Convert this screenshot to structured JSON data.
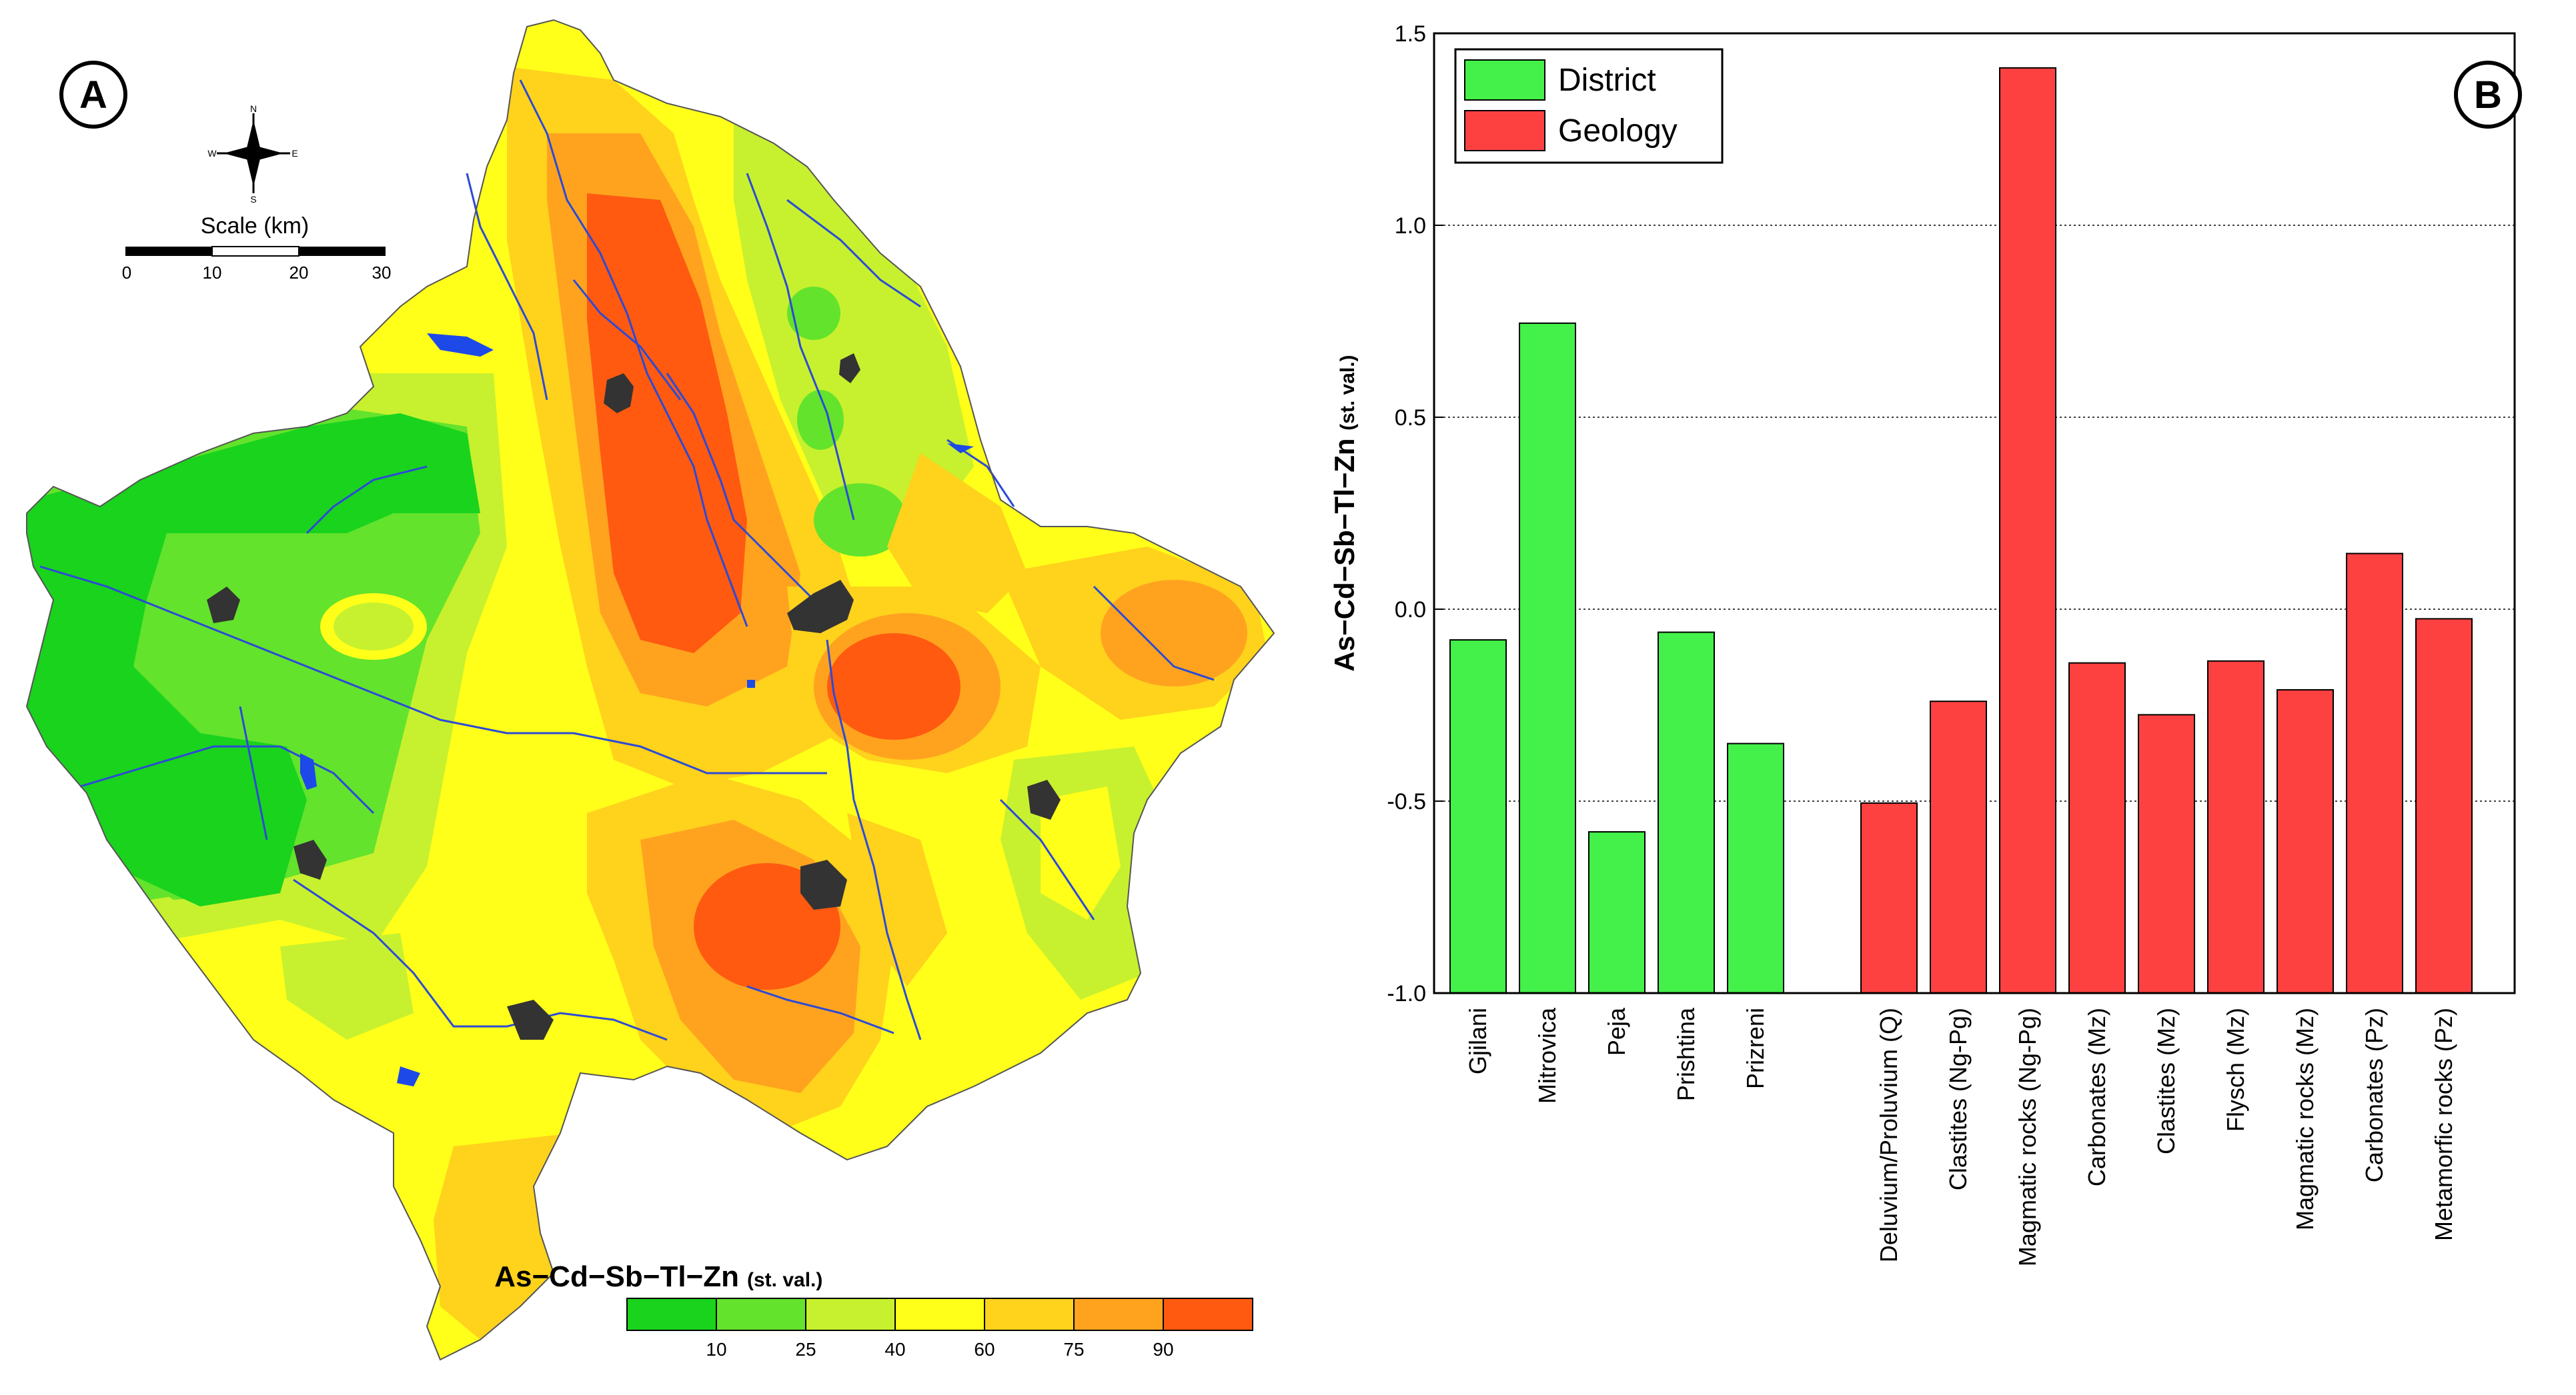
{
  "panel_a": {
    "label": "A",
    "compass": {
      "n": "N",
      "s": "S",
      "e": "E",
      "w": "W"
    },
    "scale": {
      "title": "Scale (km)",
      "ticks": [
        "0",
        "10",
        "20",
        "30"
      ]
    },
    "legend": {
      "title": "As−Cd−Sb−Tl−Zn",
      "subtitle": "(st. val.)",
      "tick_labels": [
        "10",
        "25",
        "40",
        "60",
        "75",
        "90"
      ],
      "colors": [
        "#19d31d",
        "#63e32c",
        "#c7f12e",
        "#ffff1a",
        "#ffd21c",
        "#ffa31f",
        "#ff5a0f"
      ]
    },
    "colors": {
      "river": "#2c4ad6",
      "lake": "#1d49e8",
      "city": "#333333",
      "border": "#555555"
    }
  },
  "chart_data": {
    "type": "bar",
    "panel_label": "B",
    "title": "",
    "xlabel": "",
    "ylabel": "As−Cd−Sb−Tl−Zn",
    "ylabel_unit": "(st. val.)",
    "ylim": [
      -1.0,
      1.5
    ],
    "yticks": [
      -1.0,
      -0.5,
      0.0,
      0.5,
      1.0,
      1.5
    ],
    "ytick_labels": [
      "-1.0",
      "-0.5",
      "0.0",
      "0.5",
      "1.0",
      "1.5"
    ],
    "grid": true,
    "legend_position": "top-left",
    "series": [
      {
        "name": "District",
        "color": "#44f04a",
        "categories": [
          "Gjilani",
          "Mitrovica",
          "Peja",
          "Prishtina",
          "Prizreni"
        ],
        "values": [
          -0.08,
          0.745,
          -0.58,
          -0.06,
          -0.35
        ]
      },
      {
        "name": "Geology",
        "color": "#fd4141",
        "categories": [
          "Deluvium/Proluvium (Q)",
          "Clastites (Ng-Pg)",
          "Magmatic rocks (Ng-Pg)",
          "Carbonates (Mz)",
          "Clastites (Mz)",
          "Flysch (Mz)",
          "Magmatic rocks (Mz)",
          "Carbonates (Pz)",
          "Metamorfic rocks (Pz)"
        ],
        "values": [
          -0.505,
          -0.24,
          1.41,
          -0.14,
          -0.275,
          -0.135,
          -0.21,
          0.145,
          -0.025
        ]
      }
    ]
  }
}
